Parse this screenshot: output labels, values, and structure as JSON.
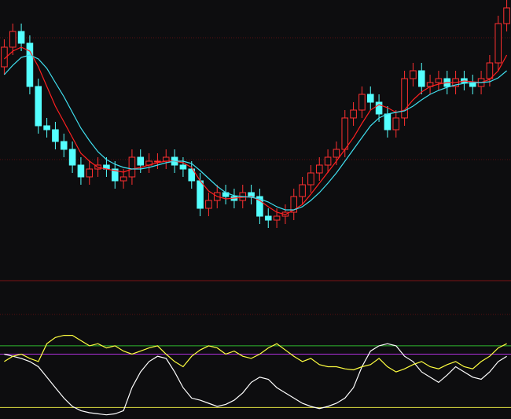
{
  "chart_data": [
    {
      "type": "candlestick",
      "up_color": "#ff3030",
      "down_color": "#54ffff",
      "ylim": [
        0,
        355
      ],
      "open": [
        270,
        295,
        315,
        300,
        245,
        195,
        190,
        175,
        165,
        145,
        130,
        140,
        145,
        140,
        125,
        130,
        155,
        145,
        150,
        150,
        155,
        145,
        140,
        125,
        90,
        100,
        110,
        105,
        100,
        110,
        105,
        80,
        75,
        80,
        85,
        105,
        120,
        135,
        145,
        155,
        165,
        205,
        215,
        235,
        225,
        210,
        190,
        205,
        255,
        265,
        245,
        250,
        255,
        245,
        255,
        250,
        245,
        255,
        275,
        325
      ],
      "high": [
        305,
        325,
        325,
        310,
        255,
        205,
        200,
        185,
        175,
        155,
        150,
        155,
        155,
        150,
        140,
        165,
        165,
        160,
        160,
        165,
        165,
        155,
        150,
        135,
        110,
        120,
        120,
        115,
        120,
        120,
        115,
        90,
        90,
        95,
        115,
        130,
        145,
        155,
        165,
        175,
        215,
        225,
        245,
        245,
        235,
        220,
        215,
        265,
        275,
        275,
        260,
        265,
        265,
        265,
        265,
        260,
        265,
        285,
        335,
        355
      ],
      "low": [
        260,
        285,
        290,
        235,
        185,
        180,
        165,
        155,
        135,
        120,
        120,
        130,
        130,
        115,
        115,
        120,
        135,
        135,
        140,
        140,
        135,
        130,
        115,
        80,
        80,
        90,
        95,
        90,
        90,
        95,
        70,
        65,
        65,
        70,
        75,
        95,
        110,
        125,
        135,
        145,
        155,
        195,
        205,
        215,
        200,
        180,
        180,
        195,
        245,
        235,
        235,
        240,
        235,
        235,
        240,
        235,
        235,
        245,
        265,
        315
      ],
      "close": [
        295,
        315,
        300,
        245,
        195,
        190,
        175,
        165,
        145,
        130,
        140,
        145,
        140,
        125,
        130,
        155,
        145,
        150,
        150,
        155,
        145,
        140,
        125,
        90,
        100,
        110,
        105,
        100,
        110,
        105,
        80,
        75,
        80,
        85,
        105,
        120,
        135,
        145,
        155,
        165,
        205,
        215,
        235,
        225,
        210,
        190,
        205,
        255,
        265,
        245,
        250,
        255,
        245,
        255,
        250,
        245,
        255,
        275,
        325,
        345
      ],
      "series": [
        {
          "color": "#ff2020",
          "values": [
            280,
            290,
            295,
            290,
            270,
            245,
            220,
            200,
            180,
            160,
            150,
            142,
            140,
            138,
            136,
            140,
            142,
            145,
            148,
            150,
            150,
            148,
            142,
            125,
            112,
            105,
            102,
            103,
            104,
            105,
            100,
            92,
            85,
            82,
            88,
            95,
            108,
            122,
            136,
            150,
            165,
            180,
            198,
            215,
            222,
            218,
            212,
            215,
            228,
            238,
            245,
            248,
            250,
            250,
            252,
            251,
            250,
            254,
            265,
            285
          ]
        },
        {
          "color": "#40e0f0",
          "values": [
            260,
            272,
            282,
            285,
            280,
            268,
            250,
            232,
            212,
            192,
            176,
            162,
            152,
            146,
            142,
            140,
            140,
            142,
            145,
            148,
            150,
            150,
            147,
            138,
            128,
            118,
            110,
            106,
            105,
            104,
            102,
            98,
            92,
            88,
            88,
            92,
            100,
            110,
            122,
            135,
            150,
            165,
            180,
            195,
            205,
            210,
            212,
            214,
            220,
            228,
            235,
            240,
            244,
            247,
            249,
            250,
            250,
            251,
            256,
            265
          ]
        }
      ]
    },
    {
      "type": "line",
      "ylim": [
        0,
        100
      ],
      "levels": [
        {
          "value": 70,
          "color": "#2eb82e"
        },
        {
          "value": 62,
          "color": "#b030e0"
        },
        {
          "value": 11,
          "color": "#e0e040"
        }
      ],
      "series": [
        {
          "color": "#ffffff",
          "values": [
            62,
            60,
            58,
            55,
            50,
            40,
            30,
            20,
            12,
            8,
            6,
            5,
            4,
            5,
            8,
            30,
            45,
            55,
            60,
            58,
            45,
            30,
            20,
            18,
            15,
            12,
            14,
            18,
            25,
            35,
            40,
            38,
            30,
            25,
            20,
            15,
            12,
            10,
            12,
            15,
            20,
            30,
            50,
            65,
            70,
            72,
            70,
            60,
            55,
            45,
            40,
            35,
            42,
            50,
            45,
            40,
            38,
            45,
            55,
            60
          ]
        },
        {
          "color": "#ffff40",
          "values": [
            55,
            60,
            62,
            58,
            55,
            72,
            78,
            80,
            80,
            75,
            70,
            72,
            68,
            70,
            65,
            62,
            65,
            68,
            70,
            62,
            55,
            50,
            60,
            66,
            70,
            68,
            62,
            65,
            60,
            58,
            62,
            68,
            72,
            66,
            60,
            55,
            58,
            52,
            50,
            50,
            48,
            47,
            50,
            52,
            58,
            50,
            45,
            48,
            52,
            55,
            50,
            48,
            52,
            55,
            50,
            48,
            55,
            60,
            68,
            72
          ]
        }
      ]
    }
  ]
}
